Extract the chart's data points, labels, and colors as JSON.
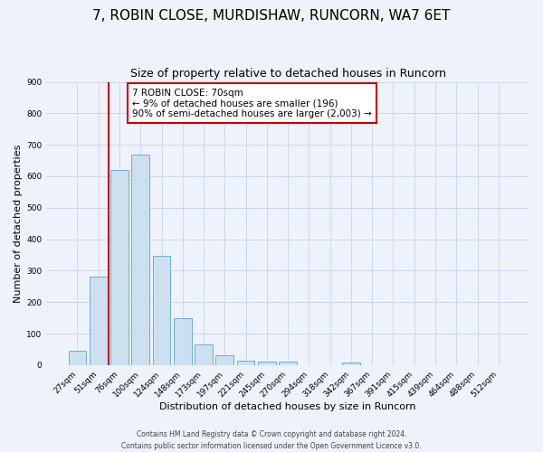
{
  "title": "7, ROBIN CLOSE, MURDISHAW, RUNCORN, WA7 6ET",
  "subtitle": "Size of property relative to detached houses in Runcorn",
  "xlabel": "Distribution of detached houses by size in Runcorn",
  "ylabel": "Number of detached properties",
  "bar_labels": [
    "27sqm",
    "51sqm",
    "76sqm",
    "100sqm",
    "124sqm",
    "148sqm",
    "173sqm",
    "197sqm",
    "221sqm",
    "245sqm",
    "270sqm",
    "294sqm",
    "318sqm",
    "342sqm",
    "367sqm",
    "391sqm",
    "415sqm",
    "439sqm",
    "464sqm",
    "488sqm",
    "512sqm"
  ],
  "bar_values": [
    45,
    280,
    620,
    670,
    348,
    148,
    65,
    32,
    15,
    11,
    10,
    0,
    0,
    8,
    0,
    0,
    0,
    0,
    0,
    0,
    0
  ],
  "bar_color": "#cce0f0",
  "bar_edge_color": "#6baed6",
  "vline_color": "#cc0000",
  "vline_index": 2,
  "annotation_text": "7 ROBIN CLOSE: 70sqm\n← 9% of detached houses are smaller (196)\n90% of semi-detached houses are larger (2,003) →",
  "annotation_box_color": "#ffffff",
  "annotation_box_edge_color": "#cc0000",
  "ylim": [
    0,
    900
  ],
  "yticks": [
    0,
    100,
    200,
    300,
    400,
    500,
    600,
    700,
    800,
    900
  ],
  "background_color": "#eef2fa",
  "grid_color": "#c8d4e8",
  "footer": "Contains HM Land Registry data © Crown copyright and database right 2024.\nContains public sector information licensed under the Open Government Licence v3.0.",
  "title_fontsize": 11,
  "subtitle_fontsize": 9,
  "xlabel_fontsize": 8,
  "ylabel_fontsize": 8,
  "tick_fontsize": 6.5,
  "annotation_fontsize": 7.5
}
